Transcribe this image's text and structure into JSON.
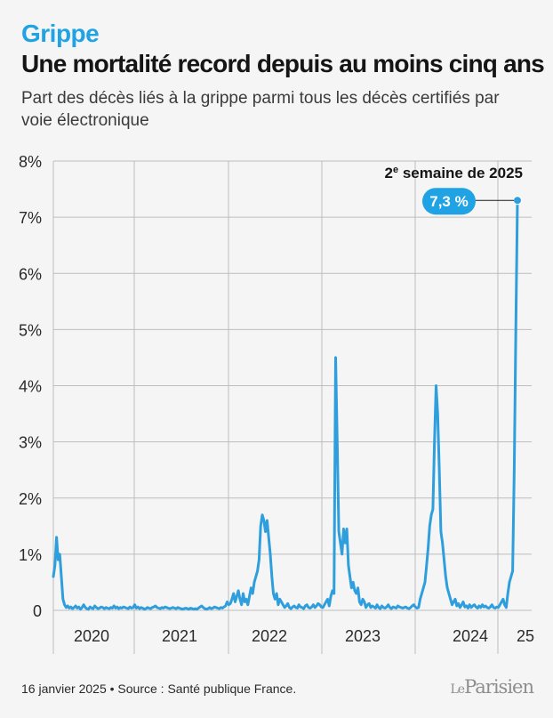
{
  "header": {
    "kicker": "Grippe",
    "title": "Une mortalité record depuis au moins cinq ans",
    "subtitle": "Part des décès liés à la grippe parmi tous les décès certifiés par voie électronique"
  },
  "colors": {
    "accent": "#1fa3e4",
    "line": "#2e9fdc",
    "grid": "#bdbdbd",
    "background": "#f5f5f5"
  },
  "chart_data": {
    "type": "line",
    "title": "",
    "xlabel": "",
    "ylabel": "",
    "ylim": [
      0,
      8
    ],
    "y_ticks": [
      "0",
      "1%",
      "2%",
      "3%",
      "4%",
      "5%",
      "6%",
      "7%",
      "8%"
    ],
    "x_ticks": [
      "2020",
      "2021",
      "2022",
      "2023",
      "2024",
      "25"
    ],
    "grid": true,
    "annotation": {
      "label": "2e semaine de 2025",
      "label_main": "2",
      "label_sup": "e",
      "label_rest": " semaine de 2025",
      "value_label": "7,3 %",
      "value": 7.3
    },
    "series": [
      {
        "values": [
          0.6,
          0.8,
          1.3,
          0.9,
          1.0,
          0.6,
          0.2,
          0.1,
          0.05,
          0.08,
          0.04,
          0.06,
          0.03,
          0.05,
          0.08,
          0.04,
          0.06,
          0.02,
          0.05,
          0.1,
          0.05,
          0.03,
          0.02,
          0.06,
          0.04,
          0.03,
          0.08,
          0.05,
          0.03,
          0.04,
          0.06,
          0.05,
          0.03,
          0.05,
          0.04,
          0.03,
          0.05,
          0.04,
          0.08,
          0.04,
          0.06,
          0.03,
          0.05,
          0.04,
          0.06,
          0.05,
          0.04,
          0.03,
          0.06,
          0.04,
          0.05,
          0.1,
          0.04,
          0.06,
          0.03,
          0.05,
          0.04,
          0.02,
          0.03,
          0.05,
          0.04,
          0.03,
          0.05,
          0.06,
          0.08,
          0.05,
          0.04,
          0.03,
          0.05,
          0.04,
          0.06,
          0.05,
          0.04,
          0.03,
          0.04,
          0.05,
          0.04,
          0.03,
          0.05,
          0.04,
          0.03,
          0.02,
          0.03,
          0.04,
          0.03,
          0.02,
          0.04,
          0.03,
          0.02,
          0.03,
          0.02,
          0.04,
          0.06,
          0.08,
          0.05,
          0.03,
          0.02,
          0.03,
          0.05,
          0.03,
          0.04,
          0.06,
          0.05,
          0.04,
          0.03,
          0.05,
          0.04,
          0.06,
          0.08,
          0.15,
          0.1,
          0.12,
          0.2,
          0.3,
          0.15,
          0.25,
          0.35,
          0.2,
          0.1,
          0.3,
          0.15,
          0.2,
          0.1,
          0.25,
          0.4,
          0.3,
          0.5,
          0.6,
          0.7,
          0.9,
          1.5,
          1.7,
          1.6,
          1.4,
          1.6,
          1.3,
          1.0,
          0.6,
          0.3,
          0.2,
          0.3,
          0.1,
          0.2,
          0.15,
          0.1,
          0.05,
          0.08,
          0.12,
          0.05,
          0.03,
          0.06,
          0.08,
          0.05,
          0.04,
          0.1,
          0.06,
          0.05,
          0.03,
          0.08,
          0.1,
          0.05,
          0.04,
          0.06,
          0.1,
          0.05,
          0.08,
          0.12,
          0.1,
          0.06,
          0.05,
          0.1,
          0.15,
          0.2,
          0.08,
          0.25,
          0.35,
          0.3,
          4.5,
          3.0,
          1.4,
          1.2,
          1.0,
          1.45,
          1.2,
          1.45,
          0.8,
          0.6,
          0.4,
          0.5,
          0.35,
          0.3,
          0.4,
          0.15,
          0.1,
          0.2,
          0.15,
          0.05,
          0.1,
          0.12,
          0.05,
          0.08,
          0.06,
          0.04,
          0.1,
          0.05,
          0.03,
          0.08,
          0.05,
          0.04,
          0.06,
          0.1,
          0.05,
          0.03,
          0.06,
          0.05,
          0.04,
          0.08,
          0.06,
          0.05,
          0.04,
          0.05,
          0.06,
          0.04,
          0.03,
          0.05,
          0.08,
          0.1,
          0.06,
          0.04,
          0.05,
          0.2,
          0.3,
          0.4,
          0.5,
          0.8,
          1.1,
          1.5,
          1.7,
          1.8,
          3.0,
          4.0,
          3.5,
          2.5,
          1.4,
          1.2,
          0.9,
          0.6,
          0.4,
          0.3,
          0.2,
          0.1,
          0.15,
          0.2,
          0.08,
          0.12,
          0.05,
          0.1,
          0.15,
          0.06,
          0.08,
          0.04,
          0.1,
          0.05,
          0.08,
          0.1,
          0.06,
          0.04,
          0.08,
          0.05,
          0.1,
          0.06,
          0.08,
          0.05,
          0.04,
          0.06,
          0.1,
          0.05,
          0.04,
          0.06,
          0.05,
          0.1,
          0.15,
          0.2,
          0.1,
          0.05,
          0.3,
          0.5,
          0.6,
          0.7,
          2.5,
          5.0,
          7.3
        ]
      }
    ]
  },
  "footer": {
    "source": "16 janvier 2025 • Source : Santé publique France.",
    "logo_le": "Le",
    "logo_name": "Parisien"
  }
}
